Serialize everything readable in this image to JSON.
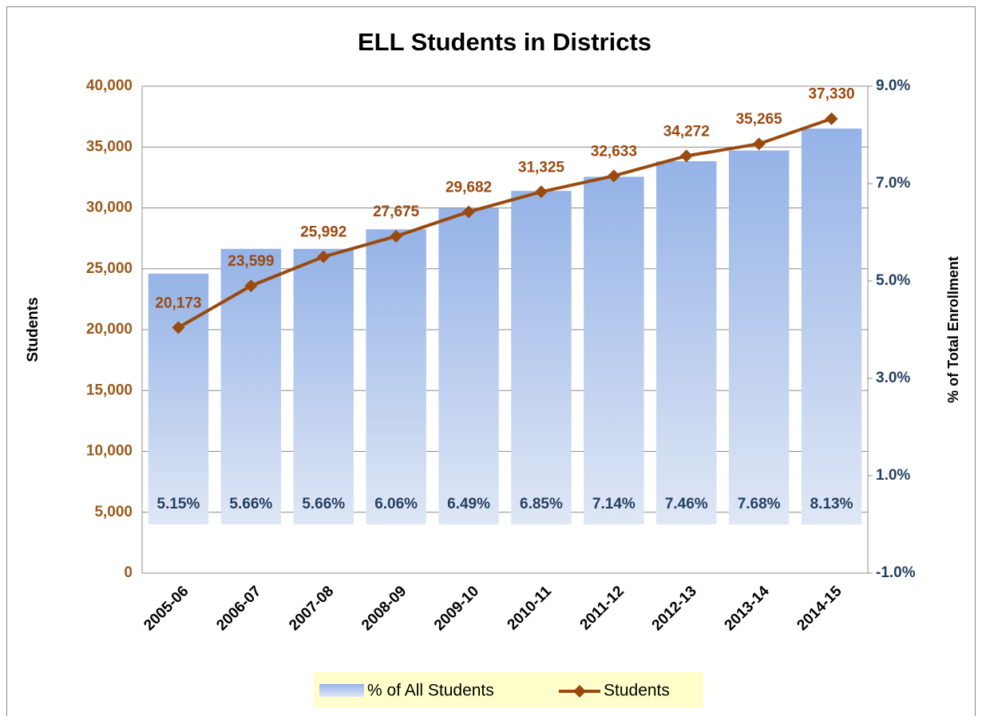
{
  "chart_data": {
    "type": "combo",
    "title": "ELL Students in Districts",
    "y_label": "Students",
    "y2_label": "% of Total Enrollment",
    "categories": [
      "2005-06",
      "2006-07",
      "2007-08",
      "2008-09",
      "2009-10",
      "2010-11",
      "2011-12",
      "2012-13",
      "2013-14",
      "2014-15"
    ],
    "series": [
      {
        "name": "% of All Students",
        "type": "bar",
        "axis": "y2",
        "color": "#95b3e7",
        "values": [
          5.15,
          5.66,
          5.66,
          6.06,
          6.49,
          6.85,
          7.14,
          7.46,
          7.68,
          8.13
        ],
        "value_labels": [
          "5.15%",
          "5.66%",
          "5.66%",
          "6.06%",
          "6.49%",
          "6.85%",
          "7.14%",
          "7.46%",
          "7.68%",
          "8.13%"
        ]
      },
      {
        "name": "Students",
        "type": "line",
        "axis": "y",
        "color": "#9a4a0f",
        "values": [
          20173,
          23599,
          25992,
          27675,
          29682,
          31325,
          32633,
          34272,
          35265,
          37330
        ],
        "value_labels": [
          "20,173",
          "23,599",
          "25,992",
          "27,675",
          "29,682",
          "31,325",
          "32,633",
          "34,272",
          "35,265",
          "37,330"
        ]
      }
    ],
    "ylim": [
      0,
      40000
    ],
    "yticks": [
      0,
      {
        "value": 5000,
        "label": "5,000"
      },
      {
        "value": 10000,
        "label": "10,000"
      },
      {
        "value": 15000,
        "label": "15,000"
      },
      {
        "value": 20000,
        "label": "20,000"
      },
      {
        "value": 25000,
        "label": "25,000"
      },
      {
        "value": 30000,
        "label": "30,000"
      },
      {
        "value": 35000,
        "label": "35,000"
      },
      {
        "value": 40000,
        "label": "40,000"
      }
    ],
    "y2lim": [
      -1,
      9
    ],
    "y2ticks": [
      {
        "value": -1,
        "label": "-1.0%"
      },
      {
        "value": 1,
        "label": "1.0%"
      },
      {
        "value": 3,
        "label": "3.0%"
      },
      {
        "value": 5,
        "label": "5.0%"
      },
      {
        "value": 7,
        "label": "7.0%"
      },
      {
        "value": 9,
        "label": "9.0%"
      }
    ],
    "grid": true,
    "legend": "bottom"
  }
}
